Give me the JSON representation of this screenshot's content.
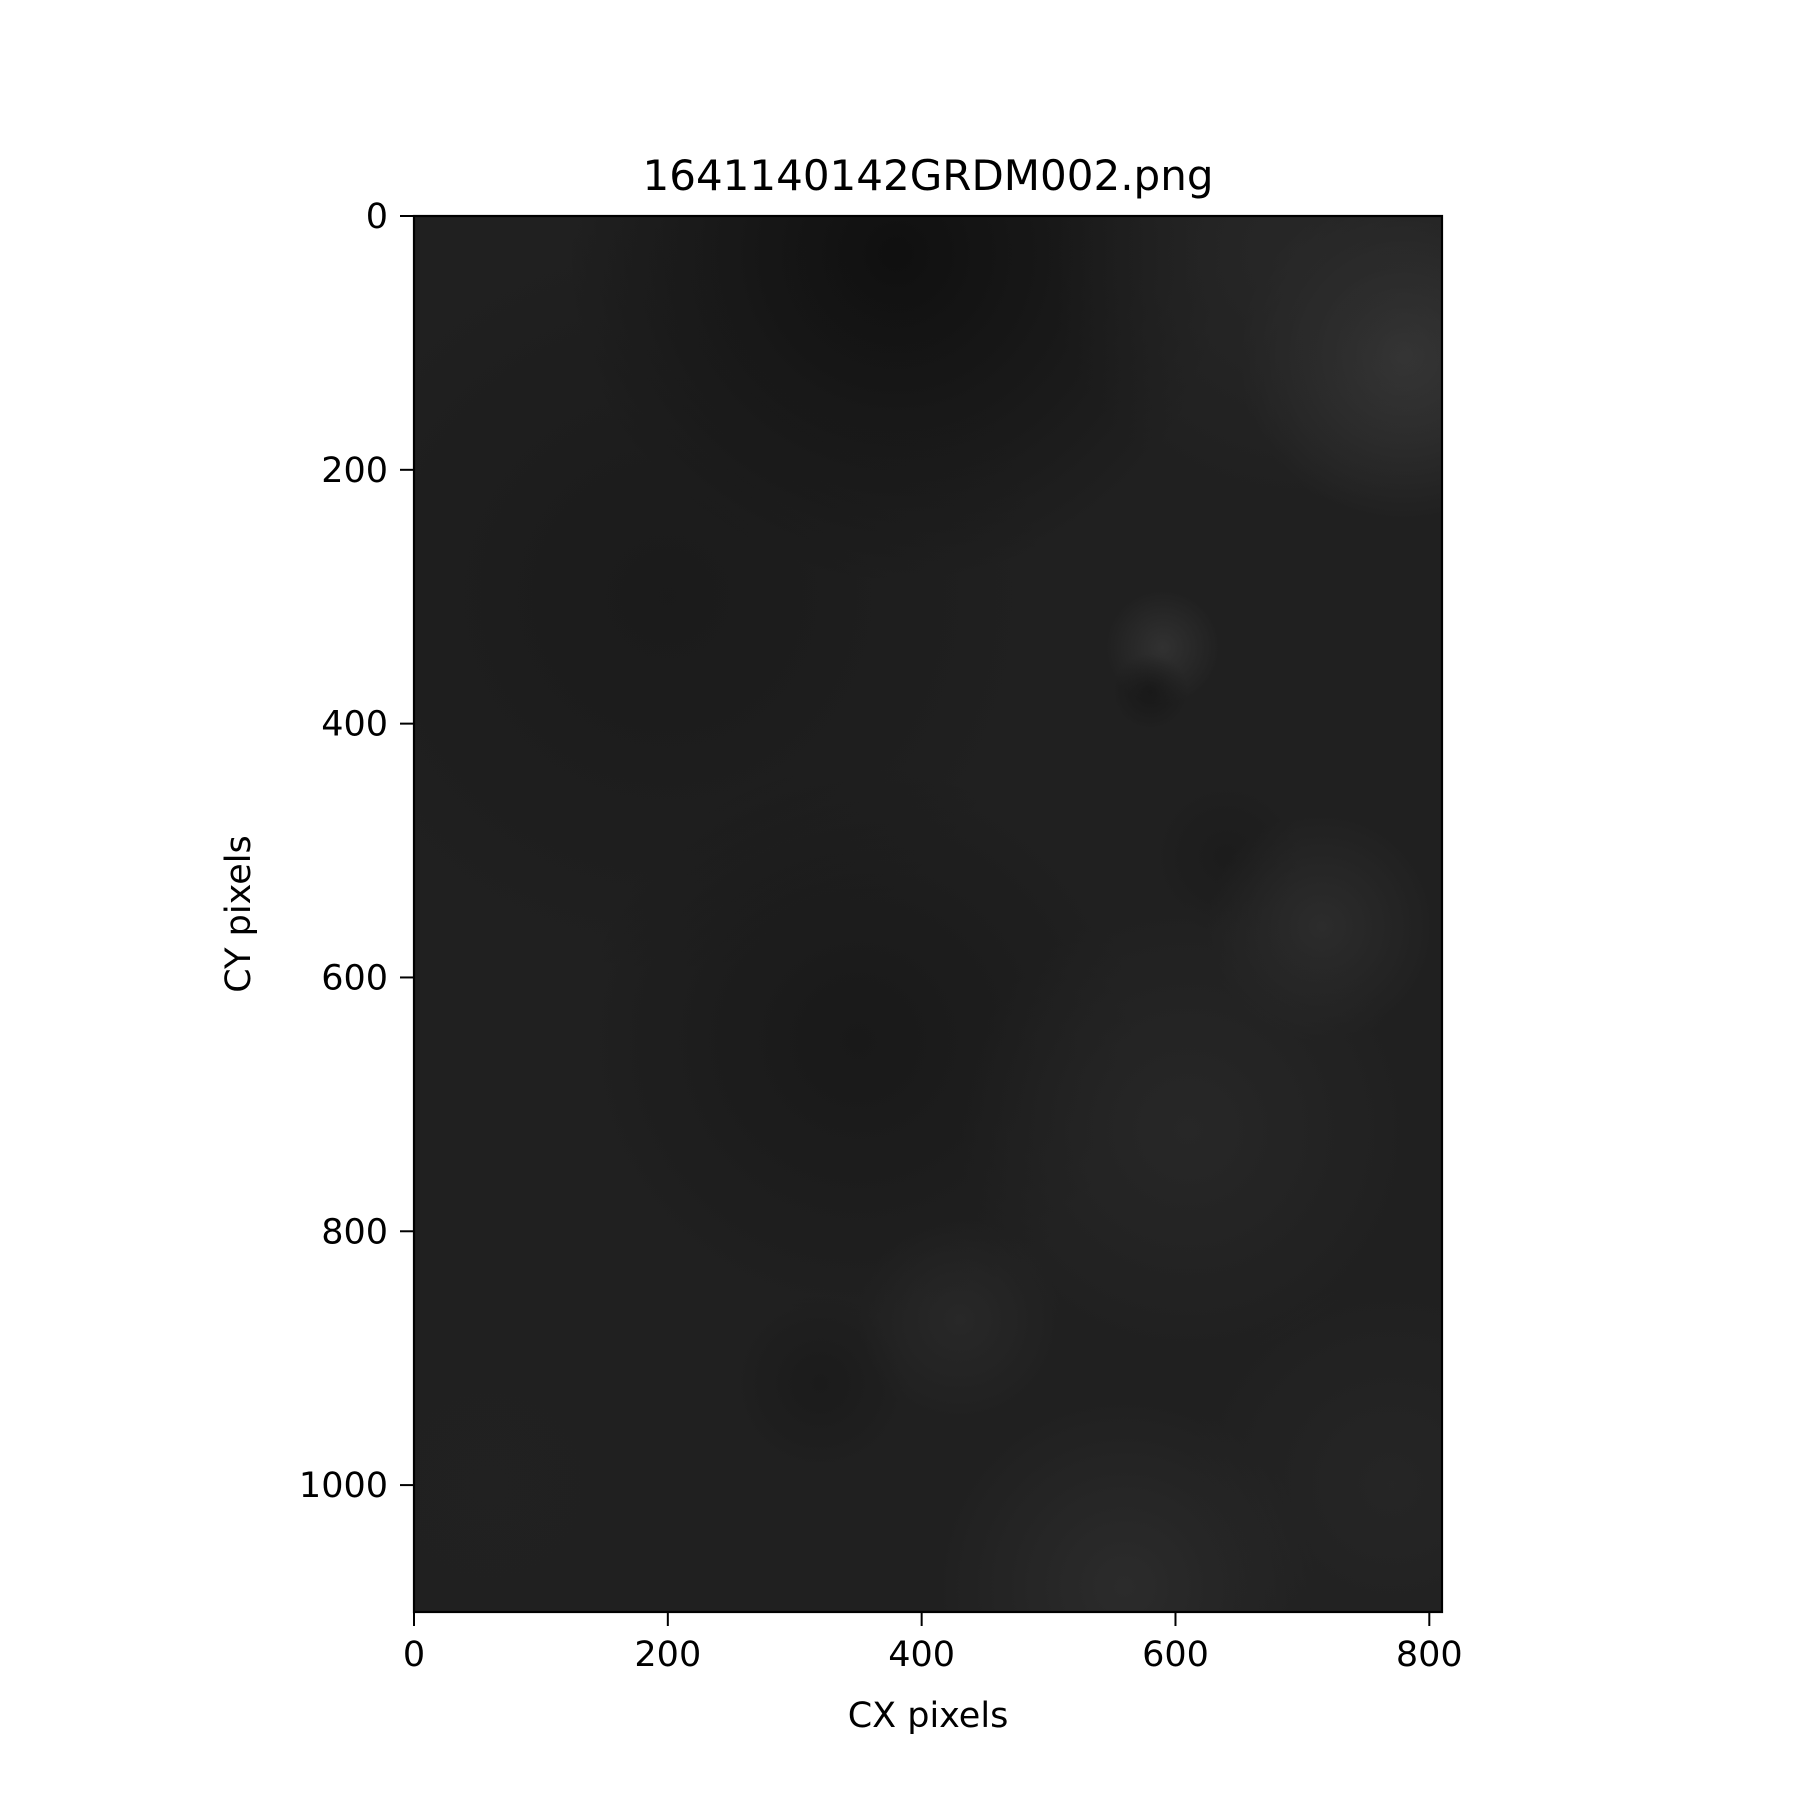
{
  "chart_data": {
    "type": "heatmap",
    "title": "1641140142GRDM002.png",
    "xlabel": "CX pixels",
    "ylabel": "CY pixels",
    "xlim": [
      0,
      810
    ],
    "ylim": [
      1100,
      0
    ],
    "x_ticks": [
      0,
      200,
      400,
      600,
      800
    ],
    "y_ticks": [
      0,
      200,
      400,
      600,
      800,
      1000
    ],
    "x_tick_labels": [
      "0",
      "200",
      "400",
      "600",
      "800"
    ],
    "y_tick_labels": [
      "0",
      "200",
      "400",
      "600",
      "800",
      "1000"
    ],
    "colormap": "gray",
    "base_color": "#202020",
    "grid": false,
    "features": [
      {
        "x": 380,
        "y": 30,
        "r": 260,
        "color": "#0e0e0e",
        "opacity": 0.9
      },
      {
        "x": 350,
        "y": 650,
        "r": 220,
        "color": "#161616",
        "opacity": 0.7
      },
      {
        "x": 200,
        "y": 300,
        "r": 300,
        "color": "#171717",
        "opacity": 0.6
      },
      {
        "x": 780,
        "y": 110,
        "r": 130,
        "color": "#3a3a3a",
        "opacity": 0.95
      },
      {
        "x": 700,
        "y": 30,
        "r": 200,
        "color": "#2a2a2a",
        "opacity": 0.7
      },
      {
        "x": 590,
        "y": 340,
        "r": 45,
        "color": "#333333",
        "opacity": 0.9
      },
      {
        "x": 580,
        "y": 375,
        "r": 30,
        "color": "#161616",
        "opacity": 0.8
      },
      {
        "x": 640,
        "y": 505,
        "r": 60,
        "color": "#1b1b1b",
        "opacity": 0.8
      },
      {
        "x": 715,
        "y": 560,
        "r": 90,
        "color": "#2e2e2e",
        "opacity": 0.85
      },
      {
        "x": 610,
        "y": 720,
        "r": 180,
        "color": "#2a2a2a",
        "opacity": 0.7
      },
      {
        "x": 320,
        "y": 920,
        "r": 70,
        "color": "#1a1a1a",
        "opacity": 0.85
      },
      {
        "x": 430,
        "y": 870,
        "r": 80,
        "color": "#2d2d2d",
        "opacity": 0.6
      },
      {
        "x": 560,
        "y": 1080,
        "r": 150,
        "color": "#303030",
        "opacity": 0.7
      },
      {
        "x": 770,
        "y": 1000,
        "r": 160,
        "color": "#292929",
        "opacity": 0.6
      },
      {
        "x": 60,
        "y": 1000,
        "r": 200,
        "color": "#222222",
        "opacity": 0.4
      }
    ]
  }
}
